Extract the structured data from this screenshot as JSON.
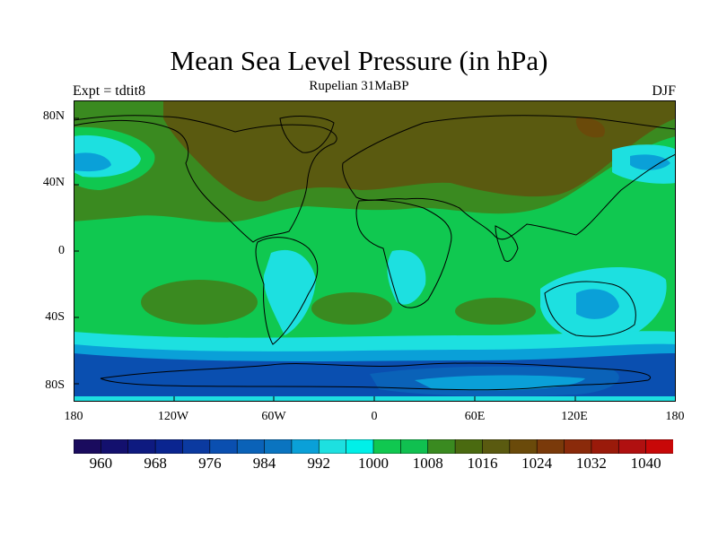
{
  "header": {
    "title": "Mean Sea Level Pressure (in hPa)",
    "subtitle": "Rupelian  31MaBP",
    "left_note": "Expt = tdtit8",
    "right_note": "DJF"
  },
  "axes": {
    "y_ticks": [
      "80N",
      "40N",
      "0",
      "40S",
      "80S"
    ],
    "x_ticks": [
      "180",
      "120W",
      "60W",
      "0",
      "60E",
      "120E",
      "180"
    ]
  },
  "colorbar": {
    "labels": [
      "960",
      "968",
      "976",
      "984",
      "992",
      "1000",
      "1008",
      "1016",
      "1024",
      "1032",
      "1040"
    ],
    "colors": [
      "#1a0b5e",
      "#13106e",
      "#0e1a80",
      "#0a2590",
      "#0b3aa0",
      "#0a4fb0",
      "#0a62b8",
      "#0a74c0",
      "#0aa0d8",
      "#1de0e0",
      "#00f0e8",
      "#10c850",
      "#10c050",
      "#3a8a20",
      "#4a6a10",
      "#5a5a10",
      "#6a4a0a",
      "#7a3a0a",
      "#8a2a0a",
      "#9a1a0a",
      "#b01010",
      "#c80808"
    ],
    "palette": {
      "deep_blue": "#0a4fb0",
      "mid_blue": "#0a62b8",
      "light_blue": "#0aa0d8",
      "cyan": "#1de0e0",
      "green": "#10c850",
      "dark_green": "#3a8a20",
      "olive": "#5a5a10",
      "brown": "#6a4a0a"
    }
  }
}
